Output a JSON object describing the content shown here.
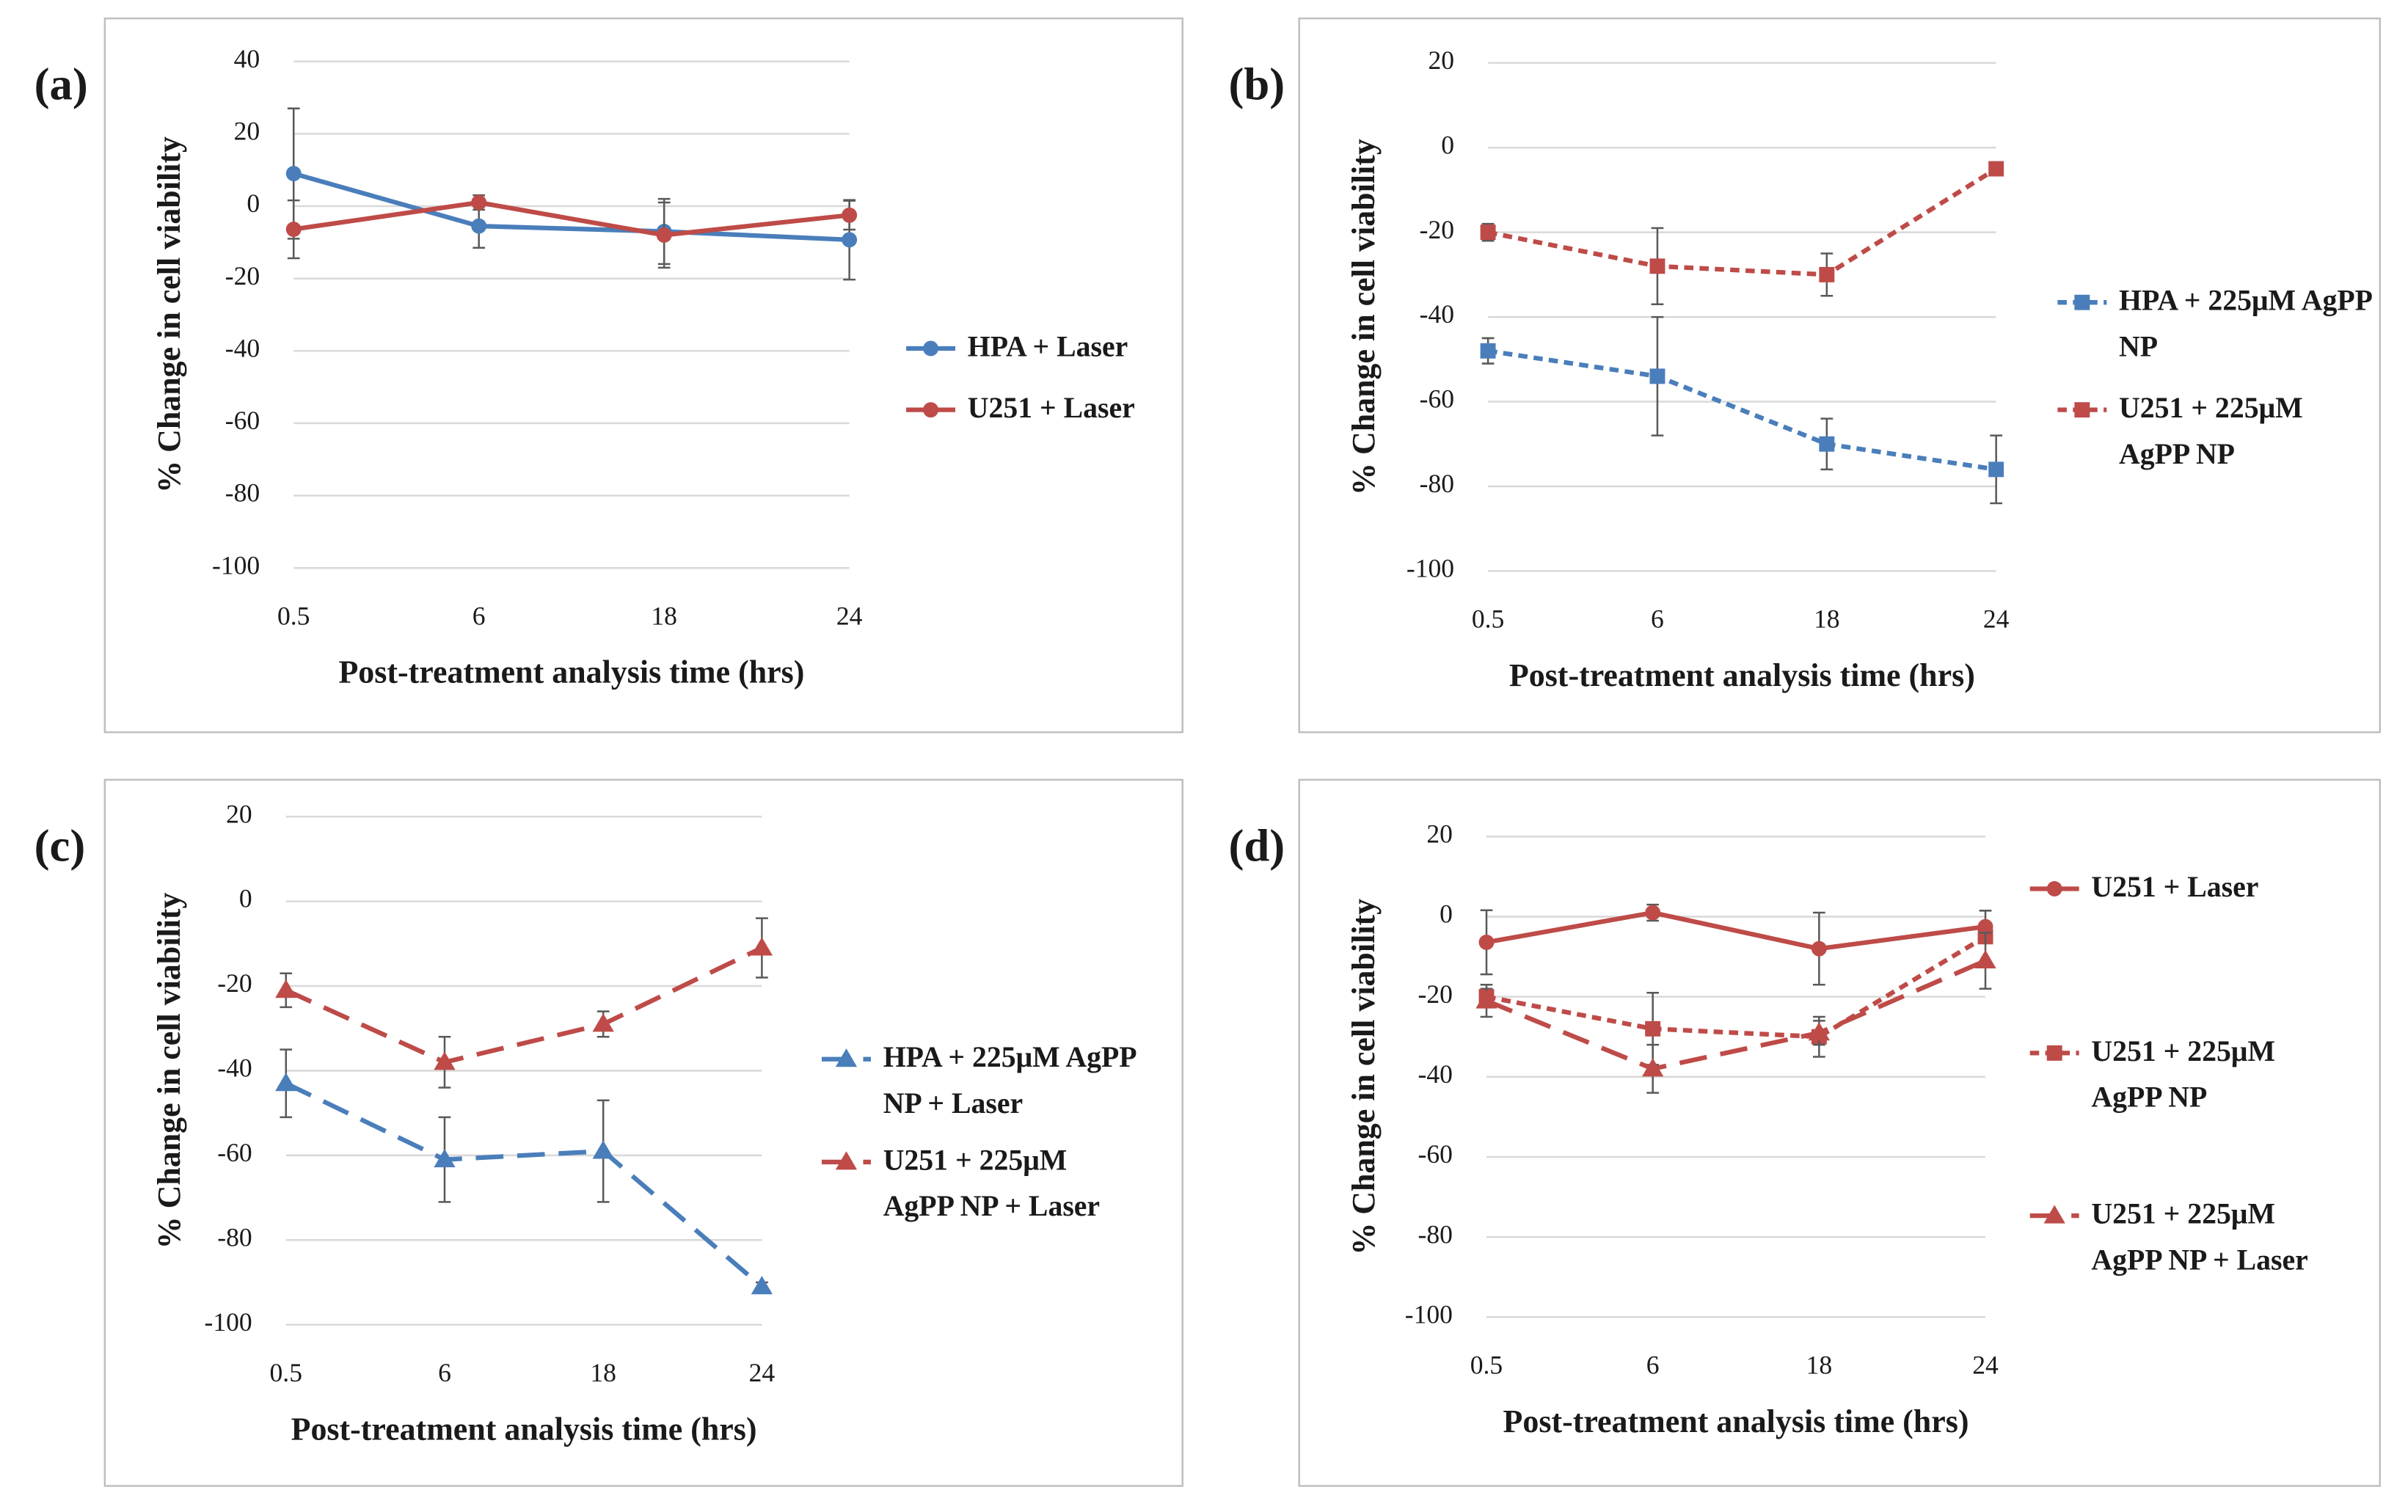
{
  "chart_data": [
    {
      "type": "line",
      "panel_label": "(a)",
      "y_label": "% Change in cell viability",
      "x_label": "Post-treatment analysis time (hrs)",
      "categories": [
        "0.5",
        "6",
        "18",
        "24"
      ],
      "ylim": [
        -100,
        40
      ],
      "yticks": [
        -100,
        -80,
        -60,
        -40,
        -20,
        0,
        20,
        40
      ],
      "grid": true,
      "series": [
        {
          "name": "HPA + Laser",
          "color": "#4a7ebb",
          "line_style": "solid",
          "marker": "circle",
          "values": [
            9,
            -5.5,
            -7,
            -9.3
          ],
          "errors": [
            18,
            6,
            9,
            11
          ]
        },
        {
          "name": "U251 + Laser",
          "color": "#be4b48",
          "line_style": "solid",
          "marker": "circle",
          "values": [
            -6.4,
            1,
            -8,
            -2.5
          ],
          "errors": [
            8,
            2,
            9,
            4
          ]
        }
      ]
    },
    {
      "type": "line",
      "panel_label": "(b)",
      "y_label": "% Change in cell viability",
      "x_label": "Post-treatment analysis time (hrs)",
      "categories": [
        "0.5",
        "6",
        "18",
        "24"
      ],
      "ylim": [
        -100,
        20
      ],
      "yticks": [
        -100,
        -80,
        -60,
        -40,
        -20,
        0,
        20
      ],
      "grid": true,
      "series": [
        {
          "name": "HPA + 225μM AgPP NP",
          "color": "#4a7ebb",
          "line_style": "dashed",
          "marker": "square",
          "values": [
            -48,
            -54,
            -70,
            -76
          ],
          "errors": [
            3,
            14,
            6,
            8
          ]
        },
        {
          "name": "U251 + 225μM AgPP NP",
          "color": "#be4b48",
          "line_style": "dashed",
          "marker": "square",
          "values": [
            -20,
            -28,
            -30,
            -5
          ],
          "errors": [
            2,
            9,
            5,
            1
          ]
        }
      ]
    },
    {
      "type": "line",
      "panel_label": "(c)",
      "y_label": "% Change in cell viability",
      "x_label": "Post-treatment analysis time (hrs)",
      "categories": [
        "0.5",
        "6",
        "18",
        "24"
      ],
      "ylim": [
        -100,
        20
      ],
      "yticks": [
        -100,
        -80,
        -60,
        -40,
        -20,
        0,
        20
      ],
      "grid": true,
      "series": [
        {
          "name": "HPA + 225μM AgPP NP + Laser",
          "color": "#4a7ebb",
          "line_style": "long-dash",
          "marker": "triangle",
          "values": [
            -43,
            -61,
            -59,
            -91
          ],
          "errors": [
            8,
            10,
            12,
            1
          ]
        },
        {
          "name": "U251 + 225μM AgPP NP + Laser",
          "color": "#be4b48",
          "line_style": "long-dash",
          "marker": "triangle",
          "values": [
            -21,
            -38,
            -29,
            -11
          ],
          "errors": [
            4,
            6,
            3,
            7
          ]
        }
      ]
    },
    {
      "type": "line",
      "panel_label": "(d)",
      "y_label": "% Change in cell viability",
      "x_label": "Post-treatment analysis time (hrs)",
      "categories": [
        "0.5",
        "6",
        "18",
        "24"
      ],
      "ylim": [
        -100,
        20
      ],
      "yticks": [
        -100,
        -80,
        -60,
        -40,
        -20,
        0,
        20
      ],
      "grid": true,
      "series": [
        {
          "name": "U251 + Laser",
          "color": "#be4b48",
          "line_style": "solid",
          "marker": "circle",
          "values": [
            -6.4,
            1,
            -8,
            -2.5
          ],
          "errors": [
            8,
            2,
            9,
            4
          ]
        },
        {
          "name": "U251 + 225μM AgPP NP",
          "color": "#be4b48",
          "line_style": "dashed",
          "marker": "square",
          "values": [
            -20,
            -28,
            -30,
            -5
          ],
          "errors": [
            2,
            9,
            5,
            1
          ]
        },
        {
          "name": "U251 + 225μM AgPP NP + Laser",
          "color": "#be4b48",
          "line_style": "long-dash",
          "marker": "triangle",
          "values": [
            -21,
            -38,
            -29,
            -11
          ],
          "errors": [
            4,
            6,
            3,
            7
          ]
        }
      ]
    }
  ]
}
